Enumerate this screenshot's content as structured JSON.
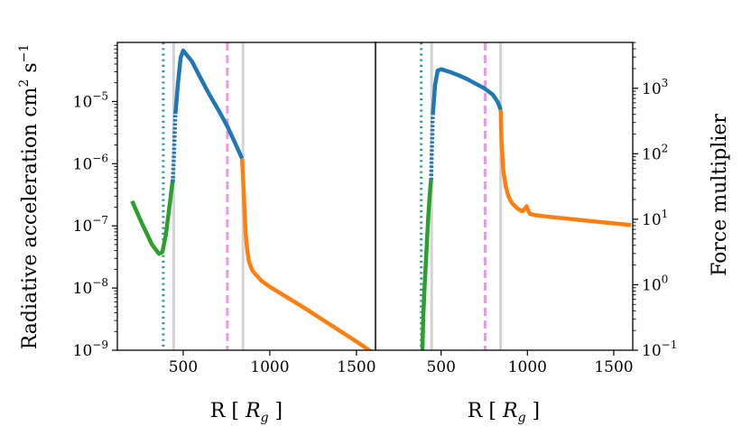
{
  "chart_data": [
    {
      "type": "line",
      "panel": "left",
      "ylabel": "Radiative acceleration cm",
      "ylabel_sup1": "2",
      "ylabel_mid": " s",
      "ylabel_sup2": "−1",
      "xlabel_prefix": "R [ ",
      "xlabel_var": "R",
      "xlabel_sub": "g",
      "xlabel_suffix": " ]",
      "xlim": [
        120,
        1610
      ],
      "ylim_log10": [
        -9,
        -4.05
      ],
      "yscale": "log",
      "xticks": [
        500,
        1000,
        1500
      ],
      "xtick_labels": [
        "500",
        "1000",
        "1500"
      ],
      "yticks_log10": [
        -9,
        -8,
        -7,
        -6,
        -5
      ],
      "ytick_labels": [
        {
          "base": "10",
          "exp": "−9"
        },
        {
          "base": "10",
          "exp": "−8"
        },
        {
          "base": "10",
          "exp": "−7"
        },
        {
          "base": "10",
          "exp": "−6"
        },
        {
          "base": "10",
          "exp": "−5"
        }
      ],
      "vlines": [
        {
          "x": 385,
          "style": "dotted",
          "color": "#2a9d9b"
        },
        {
          "x": 445,
          "style": "solid",
          "color": "#d3d3d3"
        },
        {
          "x": 755,
          "style": "dashed",
          "color": "#ee96ea"
        },
        {
          "x": 845,
          "style": "solid",
          "color": "#d3d3d3"
        }
      ],
      "series": [
        {
          "name": "green",
          "color": "#2ca02c",
          "dash": "solid",
          "x": [
            205,
            260,
            320,
            360,
            380,
            400,
            425,
            440
          ],
          "y_log10": [
            -6.6,
            -6.95,
            -7.3,
            -7.45,
            -7.42,
            -7.15,
            -6.6,
            -6.25
          ]
        },
        {
          "name": "blue-dotted",
          "color": "#1f77b4",
          "dash": "dotted",
          "x": [
            440,
            447,
            455
          ],
          "y_log10": [
            -6.3,
            -5.8,
            -5.2
          ]
        },
        {
          "name": "blue",
          "color": "#1f77b4",
          "dash": "solid",
          "x": [
            455,
            470,
            485,
            500,
            550,
            600,
            650,
            700,
            755,
            800,
            840
          ],
          "y_log10": [
            -5.2,
            -4.7,
            -4.3,
            -4.18,
            -4.35,
            -4.62,
            -4.88,
            -5.12,
            -5.4,
            -5.67,
            -5.92
          ]
        },
        {
          "name": "orange",
          "color": "#ff7f0e",
          "dash": "solid",
          "x": [
            840,
            850,
            860,
            870,
            880,
            900,
            950,
            1000,
            1100,
            1200,
            1300,
            1400,
            1500,
            1600
          ],
          "y_log10": [
            -5.92,
            -6.5,
            -7.1,
            -7.4,
            -7.58,
            -7.72,
            -7.88,
            -7.98,
            -8.15,
            -8.32,
            -8.5,
            -8.68,
            -8.86,
            -9.05
          ]
        }
      ]
    },
    {
      "type": "line",
      "panel": "right",
      "ylabel": "Force multiplier",
      "xlabel_prefix": "R [ ",
      "xlabel_var": "R",
      "xlabel_sub": "g",
      "xlabel_suffix": " ]",
      "xlim": [
        120,
        1610
      ],
      "ylim_log10": [
        -1,
        3.7
      ],
      "yscale": "log",
      "xticks": [
        500,
        1000,
        1500
      ],
      "xtick_labels": [
        "500",
        "1000",
        "1500"
      ],
      "yticks_log10": [
        -1,
        0,
        1,
        2,
        3
      ],
      "ytick_labels": [
        {
          "base": "10",
          "exp": "−1"
        },
        {
          "base": "10",
          "exp": "0"
        },
        {
          "base": "10",
          "exp": "1"
        },
        {
          "base": "10",
          "exp": "2"
        },
        {
          "base": "10",
          "exp": "3"
        }
      ],
      "vlines": [
        {
          "x": 385,
          "style": "dotted",
          "color": "#2a9d9b"
        },
        {
          "x": 445,
          "style": "solid",
          "color": "#d3d3d3"
        },
        {
          "x": 755,
          "style": "dashed",
          "color": "#ee96ea"
        },
        {
          "x": 845,
          "style": "solid",
          "color": "#d3d3d3"
        }
      ],
      "series": [
        {
          "name": "green",
          "color": "#2ca02c",
          "dash": "solid",
          "x": [
            392,
            397,
            405,
            415,
            425,
            432,
            438,
            442
          ],
          "y_log10": [
            -1,
            -0.45,
            0,
            0.5,
            1.0,
            1.3,
            1.5,
            1.6
          ]
        },
        {
          "name": "blue-dotted",
          "color": "#1f77b4",
          "dash": "dotted",
          "x": [
            442,
            447,
            452
          ],
          "y_log10": [
            1.6,
            2.1,
            2.6
          ]
        },
        {
          "name": "blue",
          "color": "#1f77b4",
          "dash": "solid",
          "x": [
            452,
            465,
            480,
            500,
            550,
            600,
            650,
            700,
            750,
            800,
            830,
            845
          ],
          "y_log10": [
            2.6,
            3.05,
            3.27,
            3.29,
            3.25,
            3.2,
            3.14,
            3.07,
            3.0,
            2.9,
            2.78,
            2.67
          ]
        },
        {
          "name": "orange",
          "color": "#ff7f0e",
          "dash": "solid",
          "x": [
            845,
            850,
            860,
            875,
            890,
            910,
            940,
            970,
            985,
            995,
            1005,
            1015,
            1050,
            1150,
            1300,
            1450,
            1600
          ],
          "y_log10": [
            2.67,
            2.2,
            1.75,
            1.5,
            1.35,
            1.25,
            1.17,
            1.12,
            1.16,
            1.2,
            1.13,
            1.08,
            1.06,
            1.03,
            0.99,
            0.95,
            0.91
          ]
        }
      ]
    }
  ]
}
